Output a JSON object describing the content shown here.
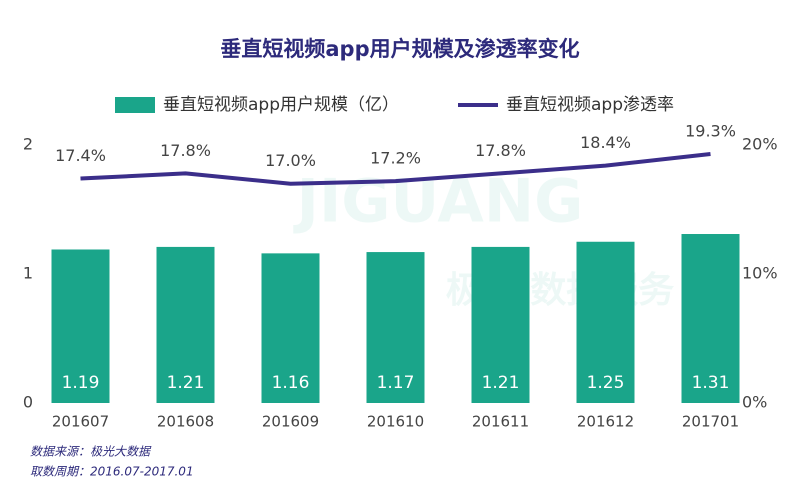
{
  "chart_data": {
    "type": "bar",
    "title": "垂直短视频app用户规模及渗透率变化",
    "categories": [
      "201607",
      "201608",
      "201609",
      "201610",
      "201611",
      "201612",
      "201701"
    ],
    "series": [
      {
        "name": "垂直短视频app用户规模（亿）",
        "color": "#1aa58a",
        "type": "bar",
        "values": [
          1.19,
          1.21,
          1.16,
          1.17,
          1.21,
          1.25,
          1.31
        ]
      },
      {
        "name": "垂直短视频app渗透率",
        "color": "#3b2e8a",
        "type": "line",
        "axis": "y2",
        "values": [
          17.4,
          17.8,
          17.0,
          17.2,
          17.8,
          18.4,
          19.3
        ],
        "value_labels": [
          "17.4%",
          "17.8%",
          "17.0%",
          "17.2%",
          "17.8%",
          "18.4%",
          "19.3%"
        ]
      }
    ],
    "ylim": [
      0,
      2
    ],
    "yticks": [
      0,
      1,
      2
    ],
    "y2lim": [
      0,
      20
    ],
    "y2ticks": [
      {
        "value": 0,
        "label": "0%"
      },
      {
        "value": 10,
        "label": "10%"
      },
      {
        "value": 20,
        "label": "20%"
      }
    ],
    "legend": "top",
    "watermark": [
      "JIGUANG",
      "极光 数据服务"
    ],
    "notes": [
      "数据来源：极光大数据",
      "取数周期：2016.07-2017.01"
    ]
  }
}
